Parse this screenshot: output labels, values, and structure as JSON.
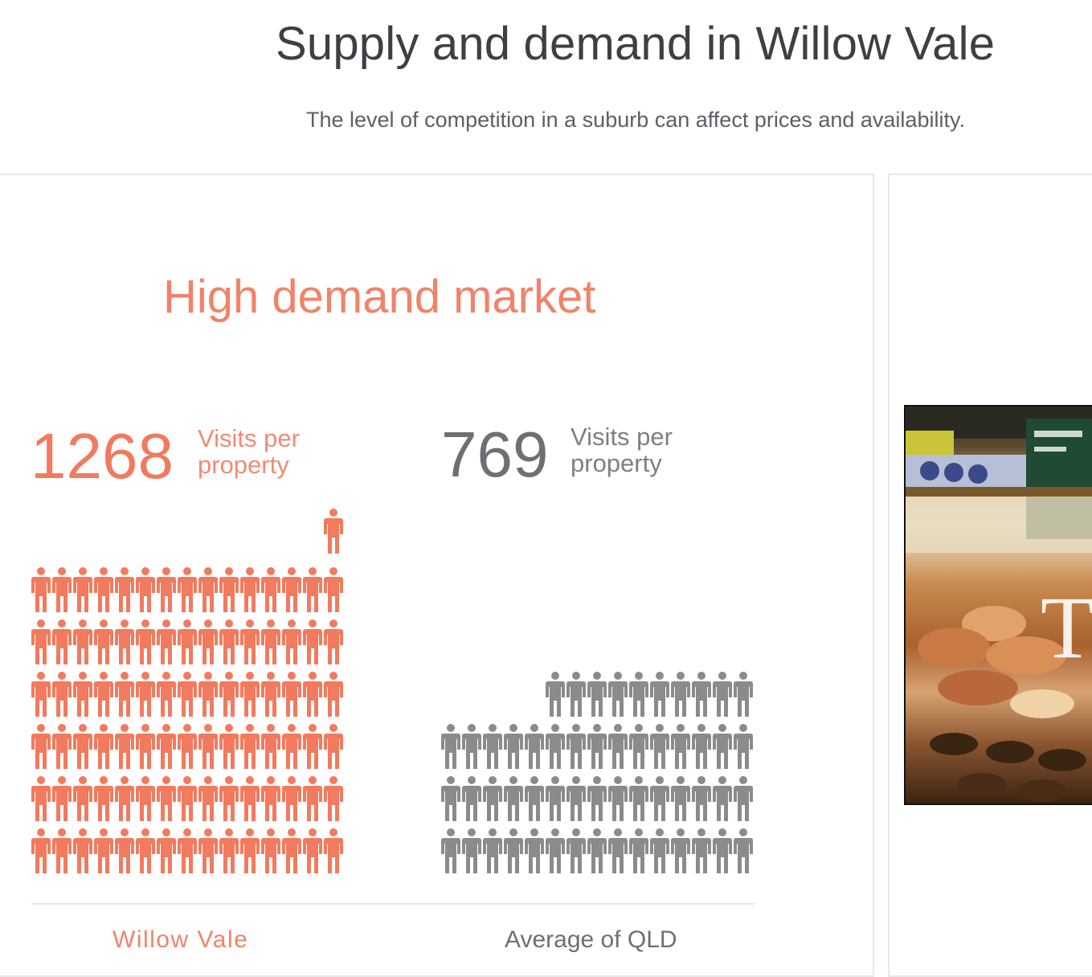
{
  "header": {
    "title": "Supply and demand in Willow Vale",
    "subtitle": "The level of competition in a suburb can affect prices and availability."
  },
  "market": {
    "heading": "High demand market"
  },
  "suburb": {
    "visits": "1268",
    "visits_label": "Visits per property",
    "name": "Willow Vale",
    "color": "#f27a5e",
    "full_rows": 6,
    "per_row": 15,
    "extra_icons": 1
  },
  "average": {
    "visits": "769",
    "visits_label": "Visits per property",
    "name": "Average of QLD",
    "color": "#8a8b8d",
    "full_rows": 3,
    "per_row": 15,
    "extra_icons": 10
  },
  "colors": {
    "accent": "#f27a5e",
    "neutral": "#8a8b8d",
    "title": "#3c4045"
  },
  "ad": {
    "image_semantic": "deli-counter-photo"
  }
}
